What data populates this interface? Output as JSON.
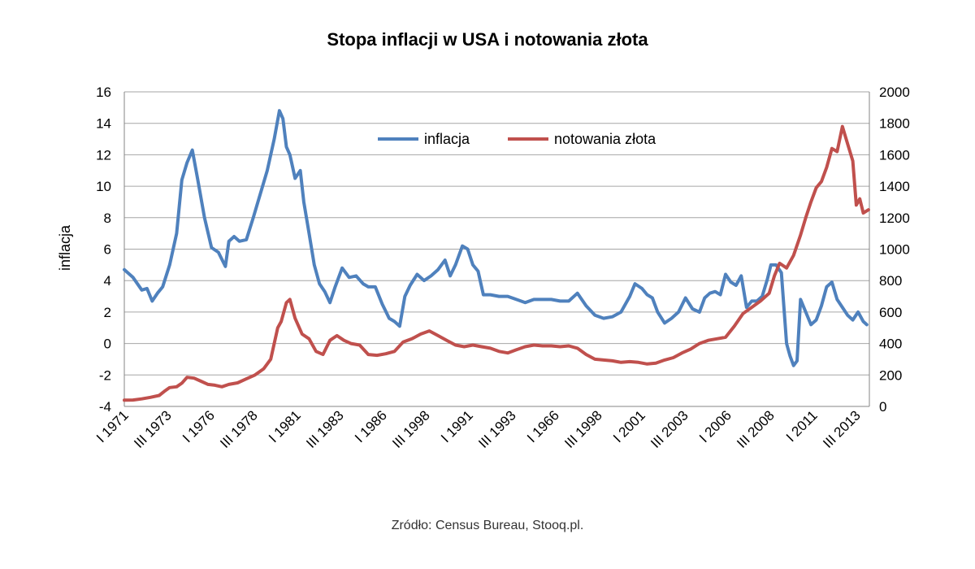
{
  "chart_data": {
    "type": "line",
    "title": "Stopa inflacji w USA i notowania złota",
    "source": "Zródło: Census Bureau, Stooq.pl.",
    "ylabel_left": "inflacja",
    "ylim_left": [
      -4,
      16
    ],
    "ylim_right": [
      0,
      2000
    ],
    "yticks_left": [
      "16",
      "14",
      "12",
      "10",
      "8",
      "6",
      "4",
      "2",
      "0",
      "-2",
      "-4"
    ],
    "yticks_right": [
      "2000",
      "1800",
      "1600",
      "1400",
      "1200",
      "1000",
      "800",
      "600",
      "400",
      "200",
      "0"
    ],
    "grid": "horizontal",
    "legend": "top-center",
    "categories": [
      "I 1971",
      "III 1973",
      "I 1976",
      "III 1978",
      "I 1981",
      "III 1983",
      "I 1986",
      "III 1998",
      "I 1991",
      "III 1993",
      "I 1966",
      "III 1998",
      "I 2001",
      "III 2003",
      "I 2006",
      "III 2008",
      "I 2011",
      "III 2013"
    ],
    "x_range": [
      1971,
      2013.75
    ],
    "series": [
      {
        "name": "inflacja",
        "axis": "left",
        "color": "#4f81bd",
        "x": [
          1971.0,
          1971.5,
          1972.0,
          1972.3,
          1972.6,
          1972.9,
          1973.2,
          1973.6,
          1974.0,
          1974.3,
          1974.6,
          1974.9,
          1975.2,
          1975.6,
          1976.0,
          1976.4,
          1976.8,
          1977.0,
          1977.3,
          1977.6,
          1978.0,
          1978.4,
          1978.8,
          1979.2,
          1979.6,
          1979.9,
          1980.1,
          1980.3,
          1980.5,
          1980.8,
          1981.1,
          1981.3,
          1981.6,
          1981.9,
          1982.2,
          1982.5,
          1982.8,
          1983.1,
          1983.5,
          1983.9,
          1984.3,
          1984.7,
          1985.0,
          1985.4,
          1985.8,
          1986.2,
          1986.5,
          1986.8,
          1987.1,
          1987.4,
          1987.8,
          1988.2,
          1988.6,
          1989.0,
          1989.4,
          1989.7,
          1990.0,
          1990.4,
          1990.7,
          1991.0,
          1991.3,
          1991.6,
          1992.0,
          1992.5,
          1993.0,
          1993.5,
          1994.0,
          1994.5,
          1995.0,
          1995.5,
          1996.0,
          1996.5,
          1997.0,
          1997.5,
          1998.0,
          1998.5,
          1999.0,
          1999.5,
          2000.0,
          2000.3,
          2000.7,
          2001.0,
          2001.3,
          2001.6,
          2002.0,
          2002.4,
          2002.8,
          2003.2,
          2003.6,
          2004.0,
          2004.3,
          2004.6,
          2004.9,
          2005.2,
          2005.5,
          2005.8,
          2006.1,
          2006.4,
          2006.7,
          2007.0,
          2007.3,
          2007.6,
          2007.9,
          2008.1,
          2008.4,
          2008.7,
          2009.0,
          2009.2,
          2009.4,
          2009.6,
          2009.8,
          2010.1,
          2010.4,
          2010.7,
          2011.0,
          2011.3,
          2011.6,
          2011.9,
          2012.2,
          2012.5,
          2012.8,
          2013.1,
          2013.4,
          2013.6
        ],
        "values": [
          4.7,
          4.2,
          3.4,
          3.5,
          2.7,
          3.2,
          3.6,
          5.0,
          7.0,
          10.4,
          11.5,
          12.3,
          10.5,
          8.0,
          6.1,
          5.8,
          4.9,
          6.5,
          6.8,
          6.5,
          6.6,
          8.0,
          9.5,
          11.0,
          13.0,
          14.8,
          14.3,
          12.5,
          12.0,
          10.5,
          11.0,
          9.0,
          7.0,
          5.0,
          3.8,
          3.3,
          2.6,
          3.6,
          4.8,
          4.2,
          4.3,
          3.8,
          3.6,
          3.6,
          2.5,
          1.6,
          1.4,
          1.1,
          3.0,
          3.7,
          4.4,
          4.0,
          4.3,
          4.7,
          5.3,
          4.3,
          5.0,
          6.2,
          6.0,
          5.0,
          4.6,
          3.1,
          3.1,
          3.0,
          3.0,
          2.8,
          2.6,
          2.8,
          2.8,
          2.8,
          2.7,
          2.7,
          3.2,
          2.4,
          1.8,
          1.6,
          1.7,
          2.0,
          3.0,
          3.8,
          3.5,
          3.1,
          2.9,
          2.0,
          1.3,
          1.6,
          2.0,
          2.9,
          2.2,
          2.0,
          2.9,
          3.2,
          3.3,
          3.1,
          4.4,
          3.9,
          3.7,
          4.3,
          2.3,
          2.7,
          2.7,
          3.0,
          4.1,
          5.0,
          5.0,
          4.5,
          0.0,
          -0.8,
          -1.4,
          -1.1,
          2.8,
          2.0,
          1.2,
          1.5,
          2.4,
          3.6,
          3.9,
          2.8,
          2.3,
          1.8,
          1.5,
          2.0,
          1.4,
          1.2
        ]
      },
      {
        "name": "notowania złota",
        "axis": "right",
        "color": "#c0504d",
        "x": [
          1971.0,
          1971.5,
          1972.0,
          1972.5,
          1973.0,
          1973.3,
          1973.6,
          1974.0,
          1974.3,
          1974.6,
          1975.0,
          1975.4,
          1975.8,
          1976.2,
          1976.6,
          1977.0,
          1977.5,
          1978.0,
          1978.5,
          1979.0,
          1979.4,
          1979.8,
          1980.0,
          1980.3,
          1980.5,
          1980.8,
          1981.2,
          1981.6,
          1982.0,
          1982.4,
          1982.8,
          1983.2,
          1983.6,
          1984.0,
          1984.5,
          1985.0,
          1985.5,
          1986.0,
          1986.5,
          1987.0,
          1987.5,
          1988.0,
          1988.5,
          1989.0,
          1989.5,
          1990.0,
          1990.5,
          1991.0,
          1991.5,
          1992.0,
          1992.5,
          1993.0,
          1993.5,
          1994.0,
          1994.5,
          1995.0,
          1995.5,
          1996.0,
          1996.5,
          1997.0,
          1997.5,
          1998.0,
          1998.5,
          1999.0,
          1999.5,
          2000.0,
          2000.5,
          2001.0,
          2001.5,
          2002.0,
          2002.5,
          2003.0,
          2003.5,
          2004.0,
          2004.5,
          2005.0,
          2005.5,
          2006.0,
          2006.5,
          2007.0,
          2007.5,
          2008.0,
          2008.3,
          2008.6,
          2009.0,
          2009.4,
          2009.8,
          2010.1,
          2010.4,
          2010.7,
          2011.0,
          2011.3,
          2011.6,
          2011.9,
          2012.2,
          2012.5,
          2012.8,
          2013.0,
          2013.2,
          2013.4,
          2013.7
        ],
        "values": [
          40,
          41,
          48,
          58,
          70,
          96,
          120,
          125,
          148,
          185,
          180,
          160,
          140,
          135,
          125,
          140,
          150,
          175,
          200,
          240,
          300,
          500,
          540,
          660,
          680,
          560,
          460,
          430,
          350,
          330,
          420,
          450,
          420,
          400,
          390,
          330,
          325,
          335,
          350,
          410,
          430,
          460,
          480,
          450,
          420,
          390,
          380,
          390,
          380,
          370,
          350,
          340,
          360,
          380,
          390,
          385,
          385,
          380,
          385,
          370,
          330,
          300,
          295,
          290,
          280,
          285,
          280,
          270,
          275,
          295,
          310,
          340,
          365,
          400,
          420,
          430,
          440,
          510,
          590,
          630,
          670,
          720,
          830,
          910,
          880,
          960,
          1090,
          1200,
          1300,
          1390,
          1430,
          1520,
          1640,
          1620,
          1780,
          1670,
          1560,
          1280,
          1320,
          1230,
          1250
        ]
      }
    ]
  }
}
